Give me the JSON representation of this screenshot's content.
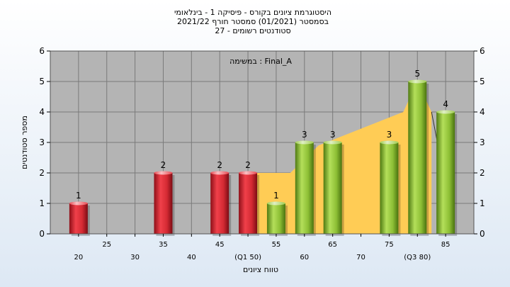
{
  "title_lines": [
    "היסטוגרמת ציונים בקורס - פיסיקה 1 - בינלאומי",
    "בסמסטר  (01/2021)  סמסטר חורף 2021/22",
    "סטודנטים רשומים - 27"
  ],
  "chart_data": {
    "type": "bar",
    "title": "היסטוגרמת ציונים בקורס - פיסיקה 1 - בינלאומי",
    "subtitle": "בסמסטר  (01/2021)  סמסטר חורף 2021/22 — סטודנטים רשומים - 27",
    "xlabel": "טווח ציונים",
    "ylabel": "מספר סטודנטים",
    "annotation": "במשימה : Final_A",
    "ylim": [
      0,
      6
    ],
    "yticks": [
      0,
      1,
      2,
      3,
      4,
      5,
      6
    ],
    "xlim": [
      15,
      90
    ],
    "xticks": [
      {
        "x": 20,
        "label": "20",
        "row": 0
      },
      {
        "x": 25,
        "label": "25",
        "row": 1
      },
      {
        "x": 30,
        "label": "30",
        "row": 0
      },
      {
        "x": 35,
        "label": "35",
        "row": 1
      },
      {
        "x": 40,
        "label": "40",
        "row": 0
      },
      {
        "x": 45,
        "label": "45",
        "row": 1
      },
      {
        "x": 50,
        "label": "(Q1 50)",
        "row": 0
      },
      {
        "x": 55,
        "label": "55",
        "row": 1
      },
      {
        "x": 60,
        "label": "60",
        "row": 0
      },
      {
        "x": 65,
        "label": "65",
        "row": 1
      },
      {
        "x": 70,
        "label": "70",
        "row": 0
      },
      {
        "x": 75,
        "label": "75",
        "row": 1
      },
      {
        "x": 80,
        "label": "(Q3 80)",
        "row": 0
      },
      {
        "x": 85,
        "label": "85",
        "row": 1
      }
    ],
    "bars": [
      {
        "x": 20,
        "value": 1,
        "color": "red"
      },
      {
        "x": 35,
        "value": 2,
        "color": "red"
      },
      {
        "x": 45,
        "value": 2,
        "color": "red"
      },
      {
        "x": 50,
        "value": 2,
        "color": "red"
      },
      {
        "x": 55,
        "value": 1,
        "color": "green"
      },
      {
        "x": 60,
        "value": 3,
        "color": "green"
      },
      {
        "x": 65,
        "value": 3,
        "color": "green"
      },
      {
        "x": 75,
        "value": 3,
        "color": "green"
      },
      {
        "x": 80,
        "value": 5,
        "color": "green"
      },
      {
        "x": 85,
        "value": 4,
        "color": "green"
      }
    ],
    "area": [
      {
        "x": 50,
        "y": 0
      },
      {
        "x": 50,
        "y": 2
      },
      {
        "x": 57.5,
        "y": 2
      },
      {
        "x": 62.5,
        "y": 2.9
      },
      {
        "x": 77.5,
        "y": 4
      },
      {
        "x": 80,
        "y": 5
      },
      {
        "x": 82.5,
        "y": 4
      },
      {
        "x": 82.5,
        "y": 0
      }
    ],
    "trend_line": [
      {
        "x": 82.5,
        "y": 4
      },
      {
        "x": 85,
        "y": 1.6
      }
    ],
    "colors": {
      "plot_bg": "#b4b4b4",
      "grid": "#7a7a7a",
      "area": "#ffcc55",
      "red_bar": "#e8323c",
      "green_bar": "#96c83c"
    }
  }
}
